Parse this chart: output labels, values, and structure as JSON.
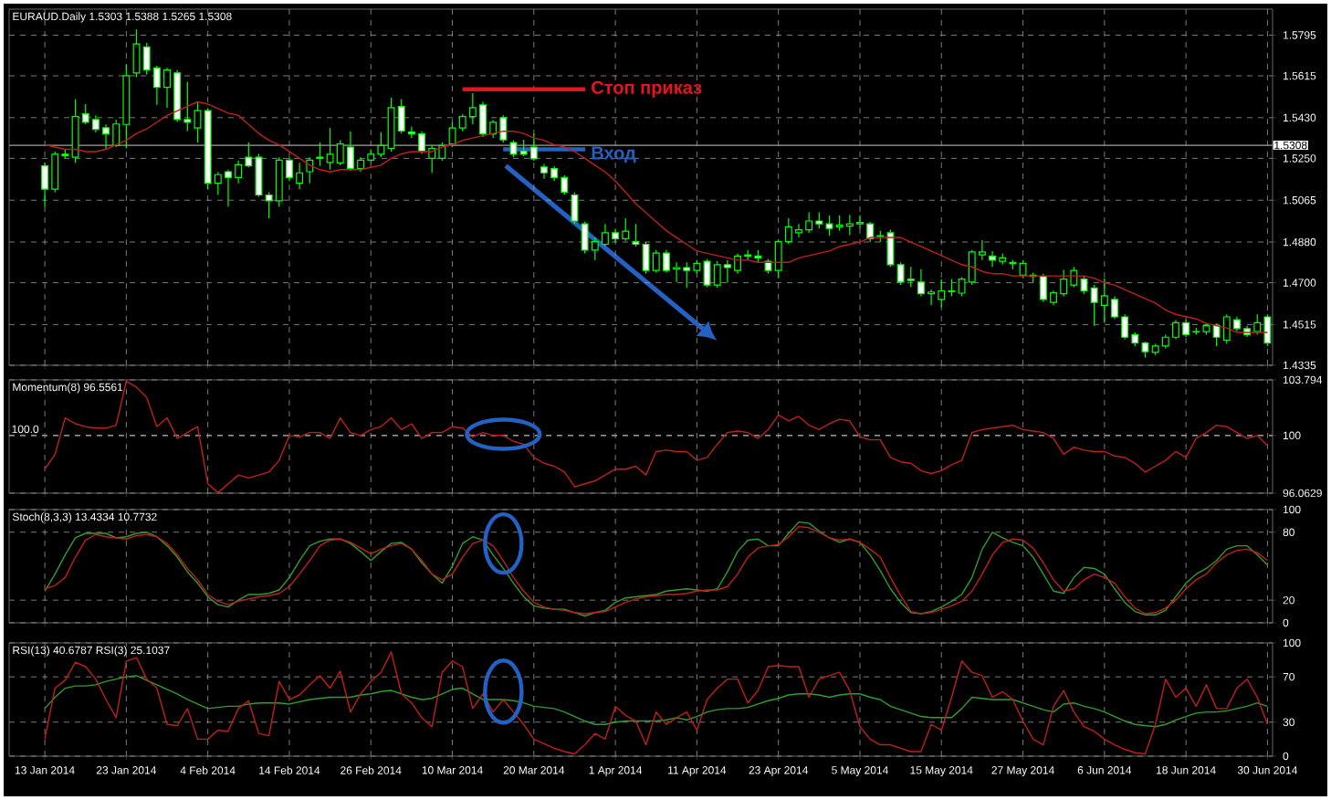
{
  "chart_data": [
    {
      "type": "candlestick",
      "title": "EURAUD.Daily 1.5303 1.5388 1.5265 1.5308",
      "color": "#00ff00",
      "categories": [
        null,
        null,
        null,
        null,
        null,
        null,
        null,
        null,
        null,
        null,
        null,
        null,
        null,
        null,
        null,
        null,
        null,
        null,
        null,
        null,
        null,
        null,
        null,
        null,
        null,
        null,
        null,
        null,
        null,
        null,
        null,
        null,
        null,
        null,
        null,
        null,
        null,
        null,
        null,
        null,
        null,
        null,
        null,
        null,
        null,
        null,
        null,
        null,
        null,
        null,
        null,
        null,
        null,
        null,
        null,
        null,
        null,
        null,
        null,
        null,
        null,
        null,
        null,
        null,
        null,
        null,
        null,
        null,
        null,
        null,
        null,
        null,
        null,
        null,
        null,
        null,
        null,
        null,
        null,
        null,
        null,
        null,
        null,
        null,
        null,
        null,
        null,
        null,
        null,
        null,
        null,
        null,
        null,
        null,
        null,
        null,
        null,
        null,
        null,
        null,
        null,
        null,
        null,
        null,
        null,
        null,
        null,
        null,
        null,
        null,
        null,
        null,
        null,
        null,
        null,
        null,
        null,
        null,
        null,
        null,
        null
      ],
      "ohlc": [
        [
          1.5217,
          1.523,
          1.5037,
          1.5114
        ],
        [
          1.5114,
          1.528,
          1.51,
          1.5268
        ],
        [
          1.5268,
          1.529,
          1.525,
          1.5262
        ],
        [
          1.5255,
          1.5512,
          1.523,
          1.5435
        ],
        [
          1.5447,
          1.549,
          1.54,
          1.541
        ],
        [
          1.5422,
          1.544,
          1.5365,
          1.5378
        ],
        [
          1.5385,
          1.54,
          1.5292,
          1.5358
        ],
        [
          1.5307,
          1.542,
          1.53,
          1.5402
        ],
        [
          1.54,
          1.5666,
          1.5294,
          1.5616
        ],
        [
          1.5628,
          1.582,
          1.5609,
          1.5756
        ],
        [
          1.5743,
          1.576,
          1.562,
          1.5641
        ],
        [
          1.565,
          1.566,
          1.5487,
          1.5564
        ],
        [
          1.5564,
          1.565,
          1.5474,
          1.5641
        ],
        [
          1.5628,
          1.564,
          1.541,
          1.5422
        ],
        [
          1.5422,
          1.5589,
          1.5371,
          1.541
        ],
        [
          1.5384,
          1.5499,
          1.532,
          1.5461
        ],
        [
          1.5461,
          1.547,
          1.5114,
          1.514
        ],
        [
          1.514,
          1.519,
          1.5088,
          1.5178
        ],
        [
          1.5191,
          1.52,
          1.5037,
          1.5165
        ],
        [
          1.5165,
          1.524,
          1.514,
          1.5222
        ],
        [
          1.5255,
          1.532,
          1.521,
          1.5217
        ],
        [
          1.5255,
          1.527,
          1.508,
          1.5088
        ],
        [
          1.5088,
          1.51,
          1.4985,
          1.5062
        ],
        [
          1.5062,
          1.5255,
          1.5037,
          1.5242
        ],
        [
          1.5242,
          1.5255,
          1.515,
          1.5165
        ],
        [
          1.514,
          1.523,
          1.5114,
          1.5186
        ],
        [
          1.5191,
          1.5255,
          1.514,
          1.5242
        ],
        [
          1.525,
          1.532,
          1.5217,
          1.5255
        ],
        [
          1.5232,
          1.5384,
          1.52,
          1.5268
        ],
        [
          1.523,
          1.533,
          1.522,
          1.5314
        ],
        [
          1.53,
          1.537,
          1.5195,
          1.5205
        ],
        [
          1.5205,
          1.5255,
          1.519,
          1.5242
        ],
        [
          1.5242,
          1.529,
          1.523,
          1.5268
        ],
        [
          1.5268,
          1.5366,
          1.5255,
          1.5307
        ],
        [
          1.5294,
          1.5518,
          1.528,
          1.5474
        ],
        [
          1.5479,
          1.5512,
          1.536,
          1.5371
        ],
        [
          1.5366,
          1.539,
          1.534,
          1.5358
        ],
        [
          1.5358,
          1.537,
          1.527,
          1.5281
        ],
        [
          1.525,
          1.531,
          1.5186,
          1.5294
        ],
        [
          1.525,
          1.532,
          1.524,
          1.5307
        ],
        [
          1.5314,
          1.541,
          1.53,
          1.5384
        ],
        [
          1.5384,
          1.5445,
          1.537,
          1.5435
        ],
        [
          1.5435,
          1.5538,
          1.54,
          1.5474
        ],
        [
          1.5486,
          1.55,
          1.5345,
          1.5358
        ],
        [
          1.5358,
          1.542,
          1.534,
          1.541
        ],
        [
          1.543,
          1.544,
          1.532,
          1.5332
        ],
        [
          1.532,
          1.533,
          1.5255,
          1.5268
        ],
        [
          1.5281,
          1.5332,
          1.526,
          1.5268
        ],
        [
          1.53,
          1.536,
          1.524,
          1.5248
        ],
        [
          1.5212,
          1.5225,
          1.516,
          1.5186
        ],
        [
          1.5205,
          1.5215,
          1.515,
          1.5165
        ],
        [
          1.5165,
          1.5175,
          1.509,
          1.5101
        ],
        [
          1.5088,
          1.51,
          1.496,
          1.4973
        ],
        [
          1.496,
          1.497,
          1.483,
          1.4844
        ],
        [
          1.4844,
          1.49,
          1.48,
          1.4882
        ],
        [
          1.487,
          1.496,
          1.486,
          1.4921
        ],
        [
          1.4921,
          1.4935,
          1.488,
          1.4895
        ],
        [
          1.4895,
          1.4985,
          1.4885,
          1.4928
        ],
        [
          1.4882,
          1.496,
          1.486,
          1.487
        ],
        [
          1.487,
          1.488,
          1.474,
          1.4754
        ],
        [
          1.4754,
          1.4845,
          1.4745,
          1.4831
        ],
        [
          1.4831,
          1.4845,
          1.4745,
          1.4754
        ],
        [
          1.4761,
          1.479,
          1.4703,
          1.4767
        ],
        [
          1.4767,
          1.479,
          1.4677,
          1.4754
        ],
        [
          1.4754,
          1.48,
          1.474,
          1.4786
        ],
        [
          1.4795,
          1.4805,
          1.468,
          1.469
        ],
        [
          1.469,
          1.4795,
          1.4677,
          1.478
        ],
        [
          1.478,
          1.48,
          1.47,
          1.4767
        ],
        [
          1.4754,
          1.483,
          1.474,
          1.4818
        ],
        [
          1.4818,
          1.4845,
          1.48,
          1.4823
        ],
        [
          1.4818,
          1.4845,
          1.479,
          1.481
        ],
        [
          1.4795,
          1.4805,
          1.474,
          1.4754
        ],
        [
          1.4754,
          1.489,
          1.472,
          1.4882
        ],
        [
          1.4882,
          1.4985,
          1.487,
          1.4947
        ],
        [
          1.4921,
          1.496,
          1.49,
          1.4934
        ],
        [
          1.4934,
          1.5011,
          1.492,
          1.4973
        ],
        [
          1.4973,
          1.5011,
          1.494,
          1.496
        ],
        [
          1.496,
          1.4998,
          1.4908,
          1.494
        ],
        [
          1.4947,
          1.4998,
          1.493,
          1.4955
        ],
        [
          1.495,
          1.5,
          1.491,
          1.496
        ],
        [
          1.496,
          1.4998,
          1.494,
          1.4966
        ],
        [
          1.496,
          1.497,
          1.488,
          1.4895
        ],
        [
          1.4905,
          1.493,
          1.488,
          1.4908
        ],
        [
          1.4921,
          1.4935,
          1.477,
          1.478
        ],
        [
          1.478,
          1.479,
          1.469,
          1.4703
        ],
        [
          1.4716,
          1.477,
          1.468,
          1.471
        ],
        [
          1.4703,
          1.476,
          1.464,
          1.4651
        ],
        [
          1.4651,
          1.467,
          1.46,
          1.4659
        ],
        [
          1.4626,
          1.4715,
          1.459,
          1.4664
        ],
        [
          1.4664,
          1.4715,
          1.464,
          1.4661
        ],
        [
          1.4654,
          1.4725,
          1.464,
          1.4716
        ],
        [
          1.4703,
          1.4845,
          1.469,
          1.4836
        ],
        [
          1.4823,
          1.4888,
          1.48,
          1.4836
        ],
        [
          1.4818,
          1.484,
          1.477,
          1.48
        ],
        [
          1.4795,
          1.483,
          1.478,
          1.481
        ],
        [
          1.479,
          1.48,
          1.476,
          1.4785
        ],
        [
          1.4733,
          1.48,
          1.472,
          1.4786
        ],
        [
          1.4728,
          1.4745,
          1.47,
          1.4733
        ],
        [
          1.4728,
          1.474,
          1.4615,
          1.4626
        ],
        [
          1.4613,
          1.4665,
          1.46,
          1.4656
        ],
        [
          1.4651,
          1.4757,
          1.464,
          1.4716
        ],
        [
          1.469,
          1.477,
          1.468,
          1.4754
        ],
        [
          1.4716,
          1.473,
          1.465,
          1.4664
        ],
        [
          1.4677,
          1.469,
          1.451,
          1.4613
        ],
        [
          1.46,
          1.472,
          1.4523,
          1.4642
        ],
        [
          1.4626,
          1.464,
          1.454,
          1.4549
        ],
        [
          1.4549,
          1.456,
          1.445,
          1.4459
        ],
        [
          1.4471,
          1.448,
          1.442,
          1.4433
        ],
        [
          1.4433,
          1.444,
          1.4369,
          1.4395
        ],
        [
          1.4392,
          1.443,
          1.438,
          1.442
        ],
        [
          1.442,
          1.447,
          1.441,
          1.4459
        ],
        [
          1.4459,
          1.4535,
          1.445,
          1.4523
        ],
        [
          1.4523,
          1.4535,
          1.446,
          1.4471
        ],
        [
          1.4484,
          1.45,
          1.447,
          1.4482
        ],
        [
          1.4484,
          1.452,
          1.447,
          1.451
        ],
        [
          1.451,
          1.452,
          1.442,
          1.4459
        ],
        [
          1.4446,
          1.456,
          1.443,
          1.4549
        ],
        [
          1.4536,
          1.455,
          1.4485,
          1.4497
        ],
        [
          1.4497,
          1.451,
          1.446,
          1.4471
        ],
        [
          1.4484,
          1.456,
          1.447,
          1.4523
        ],
        [
          1.4549,
          1.456,
          1.442,
          1.4433
        ]
      ],
      "series": [
        {
          "type": "line",
          "color": "#c0201a",
          "values": [
            1.531,
            1.53,
            1.529,
            1.529,
            1.528,
            1.528,
            1.529,
            1.531,
            1.533,
            1.536,
            1.538,
            1.541,
            1.544,
            1.546,
            1.548,
            1.55,
            1.549,
            1.547,
            1.545,
            1.544,
            1.54,
            1.536,
            1.533,
            1.531,
            1.528,
            1.525,
            1.522,
            1.52,
            1.519,
            1.52,
            1.52,
            1.52,
            1.521,
            1.522,
            1.525,
            1.527,
            1.528,
            1.528,
            1.528,
            1.53,
            1.531,
            1.533,
            1.534,
            1.535,
            1.536,
            1.537,
            1.537,
            1.536,
            1.534,
            1.533,
            1.531,
            1.53,
            1.528,
            1.525,
            1.522,
            1.519,
            1.515,
            1.51,
            1.505,
            1.501,
            1.497,
            1.493,
            1.49,
            1.487,
            1.484,
            1.483,
            1.482,
            1.481,
            1.48,
            1.48,
            1.479,
            1.479,
            1.479,
            1.479,
            1.481,
            1.482,
            1.483,
            1.484,
            1.486,
            1.487,
            1.488,
            1.49,
            1.49,
            1.49,
            1.49,
            1.488,
            1.486,
            1.484,
            1.482,
            1.48,
            1.478,
            1.477,
            1.475,
            1.474,
            1.474,
            1.473,
            1.473,
            1.473,
            1.473,
            1.473,
            1.473,
            1.473,
            1.473,
            1.472,
            1.47,
            1.469,
            1.467,
            1.465,
            1.463,
            1.461,
            1.458,
            1.456,
            1.455,
            1.454,
            1.452,
            1.451,
            1.45,
            1.448,
            1.448,
            1.448,
            1.448
          ]
        }
      ],
      "ylim": [
        1.4335,
        1.591
      ],
      "yticks": [
        1.4335,
        1.4515,
        {
          "value": 1.47,
          "label": "1.4700"
        },
        {
          "value": 1.488,
          "label": "1.4880"
        },
        1.5065,
        {
          "value": 1.525,
          "label": "1.5250"
        },
        {
          "value": 1.543,
          "label": "1.5430"
        },
        1.5615,
        1.5795
      ],
      "ref_lines": [
        {
          "axis": "y",
          "value": 1.5308,
          "label": "1.5308",
          "color": "#a0a0a0",
          "line_style": "solid"
        }
      ],
      "annotations": [
        "Стоп приказ",
        {
          "text": "Вход",
          "y": 1.529
        }
      ],
      "grid": true,
      "tick_labels": "y"
    },
    {
      "type": "line",
      "title": "Momentum(8) 96.5561",
      "categories": [
        null,
        null,
        null,
        null,
        null,
        null,
        null,
        null,
        null,
        null,
        null,
        null,
        null,
        null,
        null,
        null,
        null,
        null,
        null,
        null,
        null,
        null,
        null,
        null,
        null,
        null,
        null,
        null,
        null,
        null,
        null,
        null,
        null,
        null,
        null,
        null,
        null,
        null,
        null,
        null,
        null,
        null,
        null,
        null,
        null,
        null,
        null,
        null,
        null,
        null,
        null,
        null,
        null,
        null,
        null,
        null,
        null,
        null,
        null,
        null,
        null,
        null,
        null,
        null,
        null,
        null,
        null,
        null,
        null,
        null,
        null,
        null,
        null,
        null,
        null,
        null,
        null,
        null,
        null,
        null,
        null,
        null,
        null,
        null,
        null,
        null,
        null,
        null,
        null,
        null,
        null,
        null,
        null,
        null,
        null,
        null,
        null,
        null,
        null,
        null,
        null,
        null,
        null,
        null,
        null,
        null,
        null,
        null,
        null,
        null,
        null,
        null,
        null,
        null,
        null,
        null,
        null,
        null,
        null,
        null,
        null
      ],
      "series": [
        {
          "color": "#c0201a",
          "values": [
            97.7,
            98.7,
            101.2,
            100.8,
            100.6,
            100.5,
            100.5,
            100.7,
            103.7,
            103.3,
            102.6,
            100.6,
            101.2,
            99.8,
            100.2,
            100.6,
            96.7,
            96.1,
            96.7,
            97.3,
            97.1,
            97.3,
            97.5,
            98.3,
            100.0,
            99.9,
            100.2,
            100.2,
            99.8,
            101.2,
            100.2,
            100.0,
            100.4,
            100.6,
            101.2,
            100.4,
            100.8,
            99.8,
            100.2,
            100.2,
            100.6,
            100.5,
            99.9,
            100.2,
            100.0,
            100.0,
            99.6,
            99.4,
            98.5,
            98.1,
            97.9,
            97.5,
            96.5,
            96.7,
            96.9,
            97.3,
            97.7,
            97.7,
            97.9,
            97.3,
            98.9,
            99.0,
            98.9,
            98.9,
            98.3,
            98.5,
            99.4,
            100.2,
            100.3,
            100.2,
            99.8,
            100.4,
            101.4,
            101.0,
            101.3,
            100.7,
            100.4,
            100.8,
            101.1,
            101.0,
            99.9,
            99.7,
            99.7,
            98.5,
            98.2,
            98.1,
            97.6,
            97.4,
            97.6,
            98.0,
            98.3,
            100.2,
            100.4,
            100.5,
            100.6,
            100.7,
            100.4,
            100.3,
            100.2,
            99.8,
            98.7,
            99.2,
            99.0,
            98.9,
            98.9,
            98.6,
            98.5,
            98.1,
            97.5,
            97.9,
            98.3,
            98.9,
            98.5,
            99.8,
            100.2,
            100.7,
            100.6,
            100.2,
            99.8,
            100.0,
            99.3
          ]
        }
      ],
      "ylim": [
        96.0629,
        103.794
      ],
      "yticks": [
        96.0629,
        100,
        103.794
      ],
      "ref_lines": [
        {
          "axis": "y",
          "value": 100,
          "label": "100.0",
          "color": "#a0a0a0",
          "line_style": "dashed"
        }
      ],
      "grid": true,
      "tick_labels": "y"
    },
    {
      "type": "line",
      "title": "Stoch(8,3,3) 13.4334 10.7732",
      "categories": [
        null,
        null,
        null,
        null,
        null,
        null,
        null,
        null,
        null,
        null,
        null,
        null,
        null,
        null,
        null,
        null,
        null,
        null,
        null,
        null,
        null,
        null,
        null,
        null,
        null,
        null,
        null,
        null,
        null,
        null,
        null,
        null,
        null,
        null,
        null,
        null,
        null,
        null,
        null,
        null,
        null,
        null,
        null,
        null,
        null,
        null,
        null,
        null,
        null,
        null,
        null,
        null,
        null,
        null,
        null,
        null,
        null,
        null,
        null,
        null,
        null,
        null,
        null,
        null,
        null,
        null,
        null,
        null,
        null,
        null,
        null,
        null,
        null,
        null,
        null,
        null,
        null,
        null,
        null,
        null,
        null,
        null,
        null,
        null,
        null,
        null,
        null,
        null,
        null,
        null,
        null,
        null,
        null,
        null,
        null,
        null,
        null,
        null,
        null,
        null,
        null,
        null,
        null,
        null,
        null,
        null,
        null,
        null,
        null,
        null,
        null,
        null,
        null,
        null,
        null,
        null,
        null,
        null,
        null,
        null,
        null
      ],
      "series": [
        {
          "color": "#2f9e2f",
          "values": [
            28,
            43,
            60,
            75,
            79,
            79,
            79,
            75,
            76,
            79,
            80,
            76,
            68,
            58,
            45,
            35,
            23,
            16,
            14,
            20,
            25,
            25,
            26,
            29,
            40,
            55,
            68,
            72,
            74,
            74,
            70,
            63,
            55,
            63,
            70,
            71,
            65,
            53,
            43,
            35,
            50,
            70,
            76,
            73,
            60,
            48,
            35,
            23,
            15,
            13,
            12,
            12,
            9,
            6,
            9,
            11,
            18,
            22,
            23,
            24,
            25,
            28,
            29,
            30,
            29,
            28,
            30,
            45,
            63,
            73,
            74,
            68,
            68,
            79,
            89,
            88,
            81,
            75,
            71,
            74,
            71,
            60,
            46,
            30,
            18,
            9,
            8,
            10,
            14,
            19,
            25,
            40,
            65,
            80,
            75,
            71,
            68,
            58,
            43,
            28,
            26,
            40,
            49,
            48,
            43,
            30,
            18,
            10,
            7,
            7,
            11,
            23,
            35,
            43,
            48,
            55,
            65,
            68,
            68,
            60,
            51
          ]
        },
        {
          "color": "#c0201a",
          "values": [
            30,
            33,
            40,
            58,
            73,
            78,
            76,
            75,
            74,
            77,
            78,
            76,
            70,
            60,
            48,
            38,
            25,
            19,
            16,
            19,
            21,
            23,
            24,
            26,
            32,
            43,
            55,
            68,
            73,
            74,
            71,
            66,
            61,
            65,
            68,
            70,
            65,
            55,
            43,
            38,
            43,
            58,
            70,
            73,
            68,
            55,
            40,
            28,
            18,
            14,
            12,
            11,
            9,
            8,
            9,
            10,
            14,
            18,
            21,
            23,
            24,
            25,
            25,
            26,
            28,
            29,
            29,
            32,
            43,
            58,
            66,
            68,
            69,
            76,
            85,
            84,
            80,
            75,
            73,
            74,
            71,
            65,
            58,
            40,
            24,
            10,
            8,
            9,
            12,
            15,
            19,
            28,
            43,
            60,
            71,
            74,
            73,
            66,
            53,
            38,
            28,
            30,
            38,
            43,
            40,
            35,
            23,
            13,
            8,
            9,
            13,
            20,
            30,
            38,
            43,
            53,
            60,
            64,
            65,
            62,
            55
          ]
        }
      ],
      "ylim": [
        0,
        100
      ],
      "yticks": [
        0,
        20,
        80,
        100
      ],
      "grid": true,
      "tick_labels": "y"
    },
    {
      "type": "line",
      "title": "RSI(13) 40.6787 RSI(3) 25.1037",
      "categories": [
        "13 Jan 2014",
        null,
        null,
        null,
        null,
        null,
        null,
        null,
        "23 Jan 2014",
        null,
        null,
        null,
        null,
        null,
        null,
        null,
        "4 Feb 2014",
        null,
        null,
        null,
        null,
        null,
        null,
        null,
        "14 Feb 2014",
        null,
        null,
        null,
        null,
        null,
        null,
        null,
        "26 Feb 2014",
        null,
        null,
        null,
        null,
        null,
        null,
        null,
        "10 Mar 2014",
        null,
        null,
        null,
        null,
        null,
        null,
        null,
        "20 Mar 2014",
        null,
        null,
        null,
        null,
        null,
        null,
        null,
        "1 Apr 2014",
        null,
        null,
        null,
        null,
        null,
        null,
        null,
        "11 Apr 2014",
        null,
        null,
        null,
        null,
        null,
        null,
        null,
        "23 Apr 2014",
        null,
        null,
        null,
        null,
        null,
        null,
        null,
        "5 May 2014",
        null,
        null,
        null,
        null,
        null,
        null,
        null,
        "15 May 2014",
        null,
        null,
        null,
        null,
        null,
        null,
        null,
        "27 May 2014",
        null,
        null,
        null,
        null,
        null,
        null,
        null,
        "6 Jun 2014",
        null,
        null,
        null,
        null,
        null,
        null,
        null,
        "18 Jun 2014",
        null,
        null,
        null,
        null,
        null,
        null,
        null,
        "30 Jun 2014"
      ],
      "series": [
        {
          "color": "#2f9e2f",
          "values": [
            42,
            52,
            60,
            62,
            62,
            63,
            66,
            68,
            70,
            71,
            67,
            63,
            59,
            55,
            50,
            46,
            42,
            43,
            44,
            44,
            46,
            47,
            47,
            47,
            46,
            48,
            50,
            51,
            52,
            52,
            52,
            54,
            55,
            57,
            58,
            55,
            52,
            50,
            51,
            55,
            59,
            60,
            55,
            50,
            50,
            50,
            49,
            47,
            44,
            43,
            42,
            39,
            35,
            31,
            28,
            28,
            30,
            31,
            31,
            31,
            31,
            32,
            34,
            32,
            35,
            39,
            41,
            42,
            42,
            43,
            46,
            49,
            51,
            54,
            55,
            55,
            54,
            52,
            54,
            55,
            55,
            52,
            50,
            44,
            41,
            38,
            35,
            34,
            34,
            34,
            42,
            52,
            51,
            50,
            50,
            50,
            47,
            44,
            41,
            39,
            46,
            47,
            44,
            42,
            39,
            35,
            31,
            28,
            27,
            26,
            28,
            32,
            35,
            38,
            39,
            39,
            40,
            42,
            44,
            47,
            44
          ]
        },
        {
          "color": "#c0201a",
          "values": [
            15,
            60,
            67,
            83,
            79,
            68,
            50,
            34,
            84,
            87,
            68,
            60,
            28,
            27,
            42,
            15,
            15,
            23,
            22,
            42,
            49,
            20,
            18,
            66,
            50,
            54,
            63,
            71,
            60,
            75,
            39,
            55,
            66,
            74,
            92,
            55,
            47,
            34,
            26,
            74,
            84,
            79,
            42,
            55,
            39,
            50,
            39,
            28,
            15,
            11,
            7,
            4,
            2,
            10,
            20,
            15,
            44,
            36,
            31,
            10,
            39,
            28,
            34,
            39,
            23,
            50,
            60,
            68,
            68,
            47,
            58,
            79,
            80,
            79,
            79,
            52,
            68,
            71,
            74,
            58,
            26,
            15,
            10,
            10,
            7,
            4,
            4,
            28,
            23,
            52,
            84,
            74,
            71,
            52,
            57,
            50,
            31,
            15,
            10,
            44,
            58,
            39,
            26,
            22,
            15,
            10,
            6,
            3,
            2,
            28,
            68,
            52,
            60,
            44,
            63,
            42,
            42,
            60,
            68,
            52,
            28
          ]
        }
      ],
      "ylim": [
        0,
        100
      ],
      "yticks": [
        0,
        30,
        70,
        100
      ],
      "grid": true
    }
  ]
}
